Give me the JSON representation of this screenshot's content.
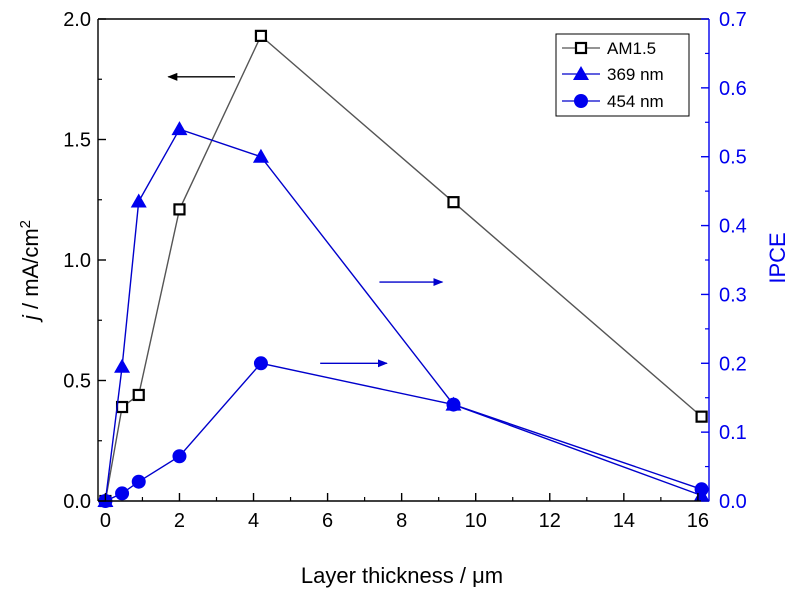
{
  "chart_data": {
    "type": "line",
    "xlabel": "Layer thickness / μm",
    "ylabel_italic": "j",
    "ylabel_rest": " / mA/cm",
    "ylabel_sup": "2",
    "y2label": "IPCE",
    "xlim": [
      -0.2,
      16.3
    ],
    "ylim": [
      0,
      2.0
    ],
    "y2lim": [
      0,
      0.7
    ],
    "x_ticks": [
      "0",
      "2",
      "4",
      "6",
      "8",
      "10",
      "12",
      "14",
      "16"
    ],
    "y_ticks": [
      "0.0",
      "0.5",
      "1.0",
      "1.5",
      "2.0"
    ],
    "y2_ticks": [
      "0.0",
      "0.1",
      "0.2",
      "0.3",
      "0.4",
      "0.5",
      "0.6",
      "0.7"
    ],
    "grid": false,
    "legend_position": "top-right",
    "series": [
      {
        "name": "AM1.5",
        "axis": "left",
        "marker": "open-square",
        "color": "#555555",
        "marker_color": "#000000",
        "x": [
          0,
          0.45,
          0.9,
          2.0,
          4.2,
          9.4,
          16.1
        ],
        "y": [
          0.0,
          0.39,
          0.44,
          1.21,
          1.93,
          1.24,
          0.35
        ]
      },
      {
        "name": "369 nm",
        "axis": "right",
        "marker": "triangle",
        "color": "#0000cc",
        "marker_color": "#0000ee",
        "x": [
          0,
          0.45,
          0.9,
          2.0,
          4.2,
          9.4,
          16.1
        ],
        "y": [
          0.0,
          0.195,
          0.435,
          0.54,
          0.5,
          0.14,
          0.008
        ]
      },
      {
        "name": "454 nm",
        "axis": "right",
        "marker": "circle",
        "color": "#0000cc",
        "marker_color": "#0000ee",
        "x": [
          0,
          0.45,
          0.9,
          2.0,
          4.2,
          9.4,
          16.1
        ],
        "y": [
          0.0,
          0.011,
          0.028,
          0.065,
          0.2,
          0.14,
          0.017
        ]
      }
    ],
    "annotations": [
      {
        "type": "arrow",
        "direction": "left",
        "color": "#000000",
        "x_from": 3.5,
        "x_to": 1.7,
        "y": 1.76,
        "axis": "left"
      },
      {
        "type": "arrow",
        "direction": "right",
        "color": "#0000cc",
        "x_from": 7.4,
        "x_to": 9.1,
        "y": 0.318,
        "axis": "right"
      },
      {
        "type": "arrow",
        "direction": "right",
        "color": "#0000cc",
        "x_from": 5.8,
        "x_to": 7.6,
        "y": 0.2,
        "axis": "right"
      }
    ]
  }
}
